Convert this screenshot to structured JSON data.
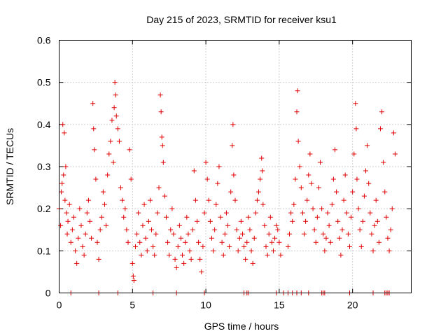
{
  "chart_data": {
    "type": "scatter",
    "title": "Day 215 of 2023, SRMTID for receiver ksu1",
    "xlabel": "GPS time / hours",
    "ylabel": "SRMTID / TECUs",
    "xlim": [
      0,
      24
    ],
    "ylim": [
      0,
      0.6
    ],
    "grid": true,
    "marker": "plus",
    "color": "#e00000",
    "xticks": [
      0,
      5,
      10,
      15,
      20
    ],
    "yticks": [
      0,
      0.1,
      0.2,
      0.3,
      0.4,
      0.5,
      0.6
    ],
    "xtick_labels": [
      "0",
      "5",
      "10",
      "15",
      "20"
    ],
    "ytick_labels": [
      "0",
      "0.1",
      "0.2",
      "0.3",
      "0.4",
      "0.5",
      "0.6"
    ],
    "series": [
      {
        "name": "SRMTID",
        "points": [
          [
            0.0,
            0.2
          ],
          [
            0.1,
            0.16
          ],
          [
            0.15,
            0.24
          ],
          [
            0.2,
            0.26
          ],
          [
            0.25,
            0.4
          ],
          [
            0.3,
            0.28
          ],
          [
            0.35,
            0.38
          ],
          [
            0.4,
            0.22
          ],
          [
            0.45,
            0.3
          ],
          [
            0.5,
            0.19
          ],
          [
            0.55,
            0.14
          ],
          [
            0.6,
            0.17
          ],
          [
            0.7,
            0.21
          ],
          [
            0.8,
            0.12
          ],
          [
            0.9,
            0.15
          ],
          [
            1.0,
            0.18
          ],
          [
            1.1,
            0.1
          ],
          [
            1.2,
            0.07
          ],
          [
            1.3,
            0.13
          ],
          [
            1.4,
            0.2
          ],
          [
            1.5,
            0.16
          ],
          [
            1.6,
            0.11
          ],
          [
            1.7,
            0.09
          ],
          [
            1.8,
            0.14
          ],
          [
            1.9,
            0.19
          ],
          [
            2.0,
            0.22
          ],
          [
            2.1,
            0.17
          ],
          [
            2.2,
            0.13
          ],
          [
            2.3,
            0.45
          ],
          [
            2.35,
            0.39
          ],
          [
            2.4,
            0.34
          ],
          [
            2.5,
            0.27
          ],
          [
            2.6,
            0.12
          ],
          [
            2.7,
            0.08
          ],
          [
            2.8,
            0.15
          ],
          [
            2.9,
            0.18
          ],
          [
            3.0,
            0.24
          ],
          [
            3.1,
            0.21
          ],
          [
            3.2,
            0.16
          ],
          [
            3.3,
            0.28
          ],
          [
            3.4,
            0.33
          ],
          [
            3.5,
            0.36
          ],
          [
            3.6,
            0.41
          ],
          [
            3.7,
            0.31
          ],
          [
            3.75,
            0.44
          ],
          [
            3.8,
            0.5
          ],
          [
            3.85,
            0.47
          ],
          [
            3.9,
            0.42
          ],
          [
            4.0,
            0.39
          ],
          [
            4.1,
            0.36
          ],
          [
            4.2,
            0.25
          ],
          [
            4.3,
            0.22
          ],
          [
            4.4,
            0.18
          ],
          [
            4.5,
            0.2
          ],
          [
            4.6,
            0.15
          ],
          [
            4.7,
            0.12
          ],
          [
            4.8,
            0.34
          ],
          [
            4.9,
            0.27
          ],
          [
            5.0,
            0.07
          ],
          [
            5.05,
            0.04
          ],
          [
            5.1,
            0.03
          ],
          [
            5.2,
            0.11
          ],
          [
            5.3,
            0.14
          ],
          [
            5.4,
            0.19
          ],
          [
            5.5,
            0.12
          ],
          [
            5.6,
            0.09
          ],
          [
            5.7,
            0.16
          ],
          [
            5.8,
            0.21
          ],
          [
            5.9,
            0.13
          ],
          [
            6.0,
            0.1
          ],
          [
            6.1,
            0.17
          ],
          [
            6.2,
            0.22
          ],
          [
            6.3,
            0.15
          ],
          [
            6.4,
            0.11
          ],
          [
            6.5,
            0.09
          ],
          [
            6.6,
            0.14
          ],
          [
            6.7,
            0.19
          ],
          [
            6.8,
            0.25
          ],
          [
            6.9,
            0.47
          ],
          [
            6.95,
            0.43
          ],
          [
            7.0,
            0.37
          ],
          [
            7.05,
            0.35
          ],
          [
            7.1,
            0.31
          ],
          [
            7.2,
            0.23
          ],
          [
            7.3,
            0.18
          ],
          [
            7.4,
            0.12
          ],
          [
            7.5,
            0.09
          ],
          [
            7.6,
            0.15
          ],
          [
            7.7,
            0.2
          ],
          [
            7.8,
            0.14
          ],
          [
            7.9,
            0.08
          ],
          [
            8.0,
            0.06
          ],
          [
            8.1,
            0.11
          ],
          [
            8.2,
            0.16
          ],
          [
            8.3,
            0.13
          ],
          [
            8.4,
            0.09
          ],
          [
            8.5,
            0.07
          ],
          [
            8.6,
            0.12
          ],
          [
            8.7,
            0.18
          ],
          [
            8.8,
            0.14
          ],
          [
            8.9,
            0.1
          ],
          [
            9.0,
            0.08
          ],
          [
            9.1,
            0.15
          ],
          [
            9.2,
            0.29
          ],
          [
            9.3,
            0.22
          ],
          [
            9.4,
            0.17
          ],
          [
            9.5,
            0.12
          ],
          [
            9.6,
            0.08
          ],
          [
            9.7,
            0.05
          ],
          [
            9.8,
            0.11
          ],
          [
            9.9,
            0.19
          ],
          [
            10.0,
            0.31
          ],
          [
            10.1,
            0.27
          ],
          [
            10.2,
            0.22
          ],
          [
            10.3,
            0.17
          ],
          [
            10.4,
            0.13
          ],
          [
            10.5,
            0.1
          ],
          [
            10.6,
            0.15
          ],
          [
            10.7,
            0.21
          ],
          [
            10.8,
            0.26
          ],
          [
            10.9,
            0.3
          ],
          [
            11.0,
            0.18
          ],
          [
            11.1,
            0.12
          ],
          [
            11.2,
            0.09
          ],
          [
            11.3,
            0.14
          ],
          [
            11.4,
            0.19
          ],
          [
            11.5,
            0.16
          ],
          [
            11.6,
            0.11
          ],
          [
            11.7,
            0.24
          ],
          [
            11.8,
            0.35
          ],
          [
            11.85,
            0.4
          ],
          [
            11.9,
            0.28
          ],
          [
            12.0,
            0.22
          ],
          [
            12.1,
            0.15
          ],
          [
            12.2,
            0.1
          ],
          [
            12.3,
            0.13
          ],
          [
            12.4,
            0.17
          ],
          [
            12.5,
            0.14
          ],
          [
            12.6,
            0.11
          ],
          [
            12.7,
            0.08
          ],
          [
            12.8,
            0.12
          ],
          [
            12.9,
            0.18
          ],
          [
            13.0,
            0.15
          ],
          [
            13.1,
            0.1
          ],
          [
            13.2,
            0.07
          ],
          [
            13.3,
            0.13
          ],
          [
            13.4,
            0.19
          ],
          [
            13.5,
            0.22
          ],
          [
            13.6,
            0.24
          ],
          [
            13.7,
            0.27
          ],
          [
            13.8,
            0.32
          ],
          [
            13.85,
            0.29
          ],
          [
            13.9,
            0.21
          ],
          [
            14.0,
            0.16
          ],
          [
            14.1,
            0.11
          ],
          [
            14.2,
            0.09
          ],
          [
            14.3,
            0.14
          ],
          [
            14.4,
            0.18
          ],
          [
            14.5,
            0.12
          ],
          [
            14.6,
            0.1
          ],
          [
            14.7,
            0.13
          ],
          [
            14.8,
            0.16
          ],
          [
            14.9,
            0.15
          ],
          [
            15.0,
            0.12
          ],
          [
            15.1,
            0.09
          ],
          [
            15.6,
            0.11
          ],
          [
            15.7,
            0.14
          ],
          [
            15.8,
            0.19
          ],
          [
            15.9,
            0.17
          ],
          [
            16.0,
            0.21
          ],
          [
            16.1,
            0.27
          ],
          [
            16.2,
            0.43
          ],
          [
            16.25,
            0.48
          ],
          [
            16.3,
            0.36
          ],
          [
            16.4,
            0.3
          ],
          [
            16.5,
            0.25
          ],
          [
            16.6,
            0.19
          ],
          [
            16.7,
            0.14
          ],
          [
            16.8,
            0.17
          ],
          [
            16.9,
            0.22
          ],
          [
            17.0,
            0.28
          ],
          [
            17.1,
            0.33
          ],
          [
            17.2,
            0.26
          ],
          [
            17.3,
            0.2
          ],
          [
            17.4,
            0.15
          ],
          [
            17.5,
            0.12
          ],
          [
            17.6,
            0.18
          ],
          [
            17.7,
            0.25
          ],
          [
            17.8,
            0.31
          ],
          [
            17.9,
            0.2
          ],
          [
            18.0,
            0.14
          ],
          [
            18.1,
            0.1
          ],
          [
            18.2,
            0.13
          ],
          [
            18.3,
            0.19
          ],
          [
            18.4,
            0.16
          ],
          [
            18.5,
            0.12
          ],
          [
            18.6,
            0.21
          ],
          [
            18.7,
            0.27
          ],
          [
            18.8,
            0.34
          ],
          [
            18.9,
            0.24
          ],
          [
            19.0,
            0.17
          ],
          [
            19.1,
            0.13
          ],
          [
            19.2,
            0.09
          ],
          [
            19.3,
            0.15
          ],
          [
            19.4,
            0.22
          ],
          [
            19.5,
            0.28
          ],
          [
            19.6,
            0.19
          ],
          [
            19.7,
            0.14
          ],
          [
            19.8,
            0.11
          ],
          [
            19.9,
            0.18
          ],
          [
            20.0,
            0.24
          ],
          [
            20.1,
            0.33
          ],
          [
            20.2,
            0.45
          ],
          [
            20.25,
            0.39
          ],
          [
            20.3,
            0.27
          ],
          [
            20.4,
            0.2
          ],
          [
            20.5,
            0.15
          ],
          [
            20.6,
            0.11
          ],
          [
            20.7,
            0.17
          ],
          [
            20.8,
            0.23
          ],
          [
            20.9,
            0.29
          ],
          [
            21.0,
            0.35
          ],
          [
            21.1,
            0.26
          ],
          [
            21.2,
            0.19
          ],
          [
            21.3,
            0.14
          ],
          [
            21.4,
            0.1
          ],
          [
            21.5,
            0.16
          ],
          [
            21.6,
            0.22
          ],
          [
            21.7,
            0.17
          ],
          [
            21.8,
            0.12
          ],
          [
            21.9,
            0.39
          ],
          [
            22.0,
            0.43
          ],
          [
            22.1,
            0.31
          ],
          [
            22.2,
            0.24
          ],
          [
            22.3,
            0.18
          ],
          [
            22.4,
            0.13
          ],
          [
            22.5,
            0.1
          ],
          [
            22.6,
            0.15
          ],
          [
            22.7,
            0.2
          ],
          [
            22.8,
            0.38
          ],
          [
            22.9,
            0.33
          ],
          [
            0.8,
            0.0
          ],
          [
            2.7,
            0.0
          ],
          [
            4.0,
            0.0
          ],
          [
            6.4,
            0.0
          ],
          [
            8.0,
            0.0
          ],
          [
            9.9,
            0.0
          ],
          [
            12.6,
            0.0
          ],
          [
            12.8,
            0.0
          ],
          [
            12.9,
            0.0
          ],
          [
            14.8,
            0.0
          ],
          [
            15.3,
            0.0
          ],
          [
            15.6,
            0.0
          ],
          [
            15.9,
            0.0
          ],
          [
            16.2,
            0.0
          ],
          [
            16.5,
            0.0
          ],
          [
            17.0,
            0.0
          ],
          [
            17.9,
            0.0
          ],
          [
            18.0,
            0.0
          ],
          [
            18.1,
            0.0
          ],
          [
            19.8,
            0.0
          ],
          [
            21.4,
            0.0
          ],
          [
            22.2,
            0.0
          ],
          [
            22.3,
            0.0
          ],
          [
            22.4,
            0.0
          ],
          [
            22.5,
            0.0
          ]
        ]
      }
    ]
  }
}
